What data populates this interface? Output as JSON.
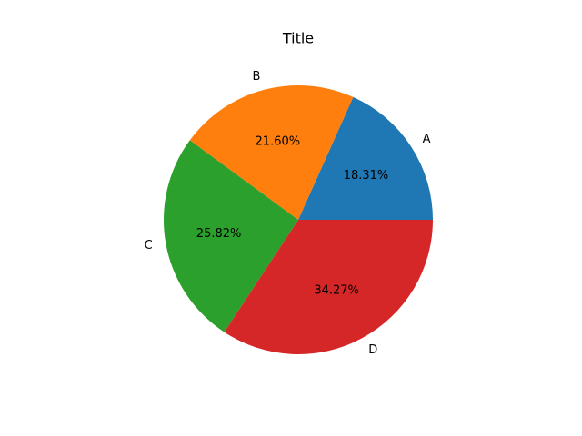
{
  "chart_data": {
    "type": "pie",
    "title": "Title",
    "categories": [
      "A",
      "B",
      "C",
      "D"
    ],
    "values": [
      18.31,
      21.6,
      25.82,
      34.27
    ],
    "value_labels": [
      "18.31%",
      "21.60%",
      "25.82%",
      "34.27%"
    ],
    "colors": [
      "#1f77b4",
      "#ff7f0e",
      "#2ca02c",
      "#d62728"
    ]
  }
}
